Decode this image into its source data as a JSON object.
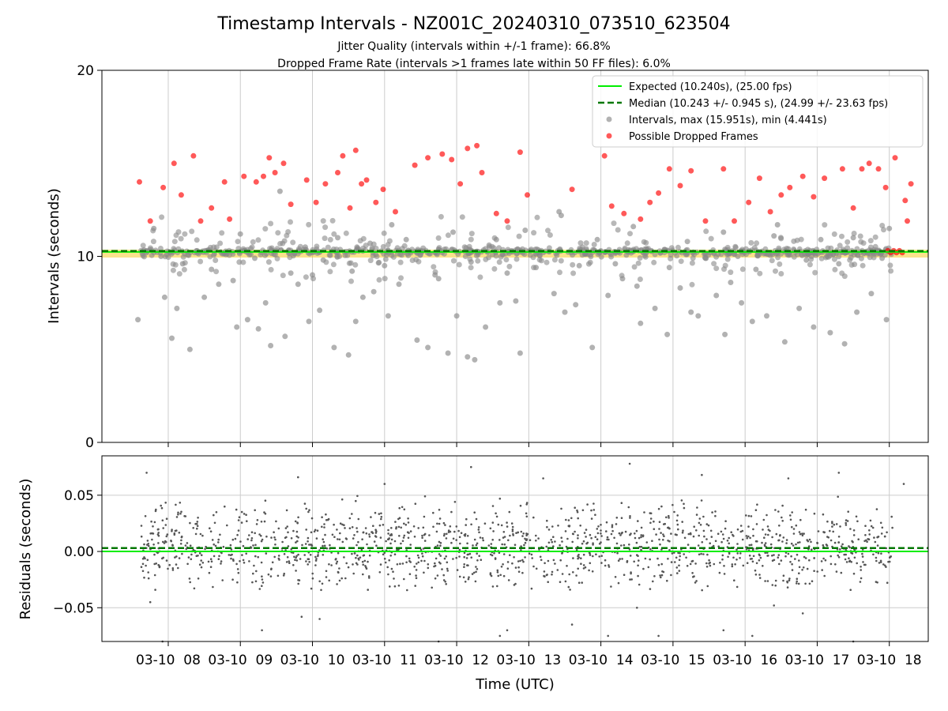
{
  "figure": {
    "title": "Timestamp Intervals - NZ001C_20240310_073510_623504",
    "subtitle_line1": "Jitter Quality (intervals within +/-1 frame): 66.8%",
    "subtitle_line2": "Dropped Frame Rate (intervals >1 frames late within 50 FF files): 6.0%"
  },
  "colors": {
    "expected": "#00ee00",
    "median": "#007700",
    "intervals": "#888888",
    "dropped": "#ff0000",
    "band": "#f5c000",
    "residuals": "#555555",
    "grid": "#cccccc"
  },
  "chart_data": [
    {
      "type": "scatter",
      "ylabel": "Intervals (seconds)",
      "ylim": [
        0,
        20
      ],
      "y_ticks": [
        "0",
        "10",
        "20"
      ],
      "xlim_hours": [
        7.08,
        18.54
      ],
      "x_ticks_hours": [
        8,
        9,
        10,
        11,
        12,
        13,
        14,
        15,
        16,
        17,
        18
      ],
      "grid": "x only",
      "legend_position": "top-right",
      "expected_line": 10.24,
      "median_line": 10.243,
      "legend": [
        "Expected (10.240s), (25.00 fps)",
        "Median (10.243 +/- 0.945 s), (24.99 +/- 23.63 fps)",
        "Intervals, max (15.951s), min (4.441s)",
        "Possible Dropped Frames"
      ],
      "series": [
        {
          "name": "Intervals, max (15.951s), min (4.441s)",
          "points": [
            [
              7.58,
              6.6
            ],
            [
              7.8,
              11.5
            ],
            [
              7.95,
              7.8
            ],
            [
              8.05,
              5.6
            ],
            [
              8.12,
              7.2
            ],
            [
              8.3,
              5.0
            ],
            [
              8.5,
              7.8
            ],
            [
              8.7,
              8.5
            ],
            [
              8.95,
              6.2
            ],
            [
              9.1,
              6.6
            ],
            [
              9.25,
              6.1
            ],
            [
              9.35,
              7.5
            ],
            [
              9.42,
              5.2
            ],
            [
              9.62,
              5.7
            ],
            [
              9.8,
              8.5
            ],
            [
              9.95,
              6.5
            ],
            [
              10.1,
              7.1
            ],
            [
              10.3,
              5.1
            ],
            [
              10.5,
              4.7
            ],
            [
              10.6,
              6.5
            ],
            [
              10.7,
              7.8
            ],
            [
              10.85,
              8.1
            ],
            [
              11.05,
              6.8
            ],
            [
              11.2,
              8.5
            ],
            [
              11.45,
              5.5
            ],
            [
              11.6,
              5.1
            ],
            [
              11.75,
              8.8
            ],
            [
              11.88,
              4.8
            ],
            [
              12.0,
              6.8
            ],
            [
              12.15,
              4.6
            ],
            [
              12.25,
              4.441
            ],
            [
              12.4,
              6.2
            ],
            [
              12.6,
              7.5
            ],
            [
              12.82,
              7.6
            ],
            [
              12.88,
              4.8
            ],
            [
              13.1,
              9.4
            ],
            [
              13.35,
              8.0
            ],
            [
              13.5,
              7.0
            ],
            [
              13.65,
              7.4
            ],
            [
              13.88,
              5.1
            ],
            [
              14.1,
              7.9
            ],
            [
              14.3,
              8.8
            ],
            [
              14.55,
              6.4
            ],
            [
              14.75,
              7.2
            ],
            [
              14.92,
              5.8
            ],
            [
              15.1,
              8.3
            ],
            [
              15.25,
              7.0
            ],
            [
              15.35,
              6.8
            ],
            [
              15.6,
              7.9
            ],
            [
              15.72,
              5.8
            ],
            [
              15.95,
              7.5
            ],
            [
              16.1,
              6.5
            ],
            [
              16.3,
              6.8
            ],
            [
              16.55,
              5.4
            ],
            [
              16.75,
              7.2
            ],
            [
              16.95,
              6.2
            ],
            [
              17.18,
              5.9
            ],
            [
              17.38,
              5.3
            ],
            [
              17.55,
              7.0
            ],
            [
              17.75,
              8.0
            ],
            [
              17.96,
              6.6
            ],
            [
              7.7,
              10.2
            ],
            [
              7.9,
              10.0
            ],
            [
              8.2,
              9.6
            ],
            [
              8.4,
              10.3
            ],
            [
              8.6,
              9.3
            ],
            [
              8.8,
              10.1
            ],
            [
              9.0,
              11.2
            ],
            [
              9.2,
              9.9
            ],
            [
              9.45,
              10.3
            ],
            [
              9.7,
              9.1
            ],
            [
              9.9,
              10.5
            ],
            [
              10.15,
              9.8
            ],
            [
              10.35,
              11.0
            ],
            [
              10.55,
              9.2
            ],
            [
              10.8,
              10.7
            ],
            [
              11.0,
              9.5
            ],
            [
              11.3,
              10.9
            ],
            [
              11.5,
              10.1
            ],
            [
              11.7,
              9.0
            ],
            [
              11.95,
              11.3
            ],
            [
              12.2,
              9.7
            ],
            [
              12.45,
              10.6
            ],
            [
              12.7,
              9.1
            ],
            [
              12.95,
              11.4
            ],
            [
              13.2,
              10.2
            ],
            [
              13.45,
              12.2
            ],
            [
              13.7,
              9.5
            ],
            [
              13.95,
              10.9
            ],
            [
              14.2,
              9.6
            ],
            [
              14.45,
              11.6
            ],
            [
              14.7,
              10.3
            ],
            [
              14.95,
              9.4
            ],
            [
              15.2,
              10.8
            ],
            [
              15.45,
              9.9
            ],
            [
              15.7,
              11.3
            ],
            [
              15.9,
              10.0
            ],
            [
              16.15,
              9.3
            ],
            [
              16.4,
              11.1
            ],
            [
              16.6,
              10.4
            ],
            [
              16.85,
              9.8
            ],
            [
              17.05,
              10.9
            ],
            [
              17.3,
              9.6
            ],
            [
              17.5,
              11.0
            ],
            [
              17.7,
              10.2
            ],
            [
              17.9,
              9.9
            ],
            [
              18.0,
              11.5
            ],
            [
              9.55,
              13.5
            ],
            [
              13.42,
              12.4
            ],
            [
              16.45,
              11.7
            ],
            [
              10.0,
              9.0
            ],
            [
              11.1,
              11.7
            ],
            [
              14.5,
              8.4
            ],
            [
              15.8,
              8.6
            ],
            [
              12.55,
              10.9
            ],
            [
              8.9,
              8.7
            ]
          ]
        },
        {
          "name": "Possible Dropped Frames",
          "points": [
            [
              7.6,
              14.0
            ],
            [
              7.75,
              11.9
            ],
            [
              7.93,
              13.7
            ],
            [
              8.08,
              15.0
            ],
            [
              8.18,
              13.3
            ],
            [
              8.35,
              15.4
            ],
            [
              8.45,
              11.9
            ],
            [
              8.6,
              12.6
            ],
            [
              8.78,
              14.0
            ],
            [
              8.85,
              12.0
            ],
            [
              9.05,
              14.3
            ],
            [
              9.22,
              14.0
            ],
            [
              9.32,
              14.3
            ],
            [
              9.4,
              15.3
            ],
            [
              9.48,
              14.5
            ],
            [
              9.6,
              15.0
            ],
            [
              9.7,
              12.8
            ],
            [
              9.92,
              14.1
            ],
            [
              10.05,
              12.9
            ],
            [
              10.18,
              13.9
            ],
            [
              10.35,
              14.5
            ],
            [
              10.42,
              15.4
            ],
            [
              10.52,
              12.6
            ],
            [
              10.6,
              15.7
            ],
            [
              10.68,
              13.9
            ],
            [
              10.75,
              14.1
            ],
            [
              10.88,
              12.9
            ],
            [
              10.98,
              13.6
            ],
            [
              11.15,
              12.4
            ],
            [
              11.42,
              14.9
            ],
            [
              11.6,
              15.3
            ],
            [
              11.8,
              15.5
            ],
            [
              11.93,
              15.2
            ],
            [
              12.05,
              13.9
            ],
            [
              12.15,
              15.8
            ],
            [
              12.28,
              15.951
            ],
            [
              12.35,
              14.5
            ],
            [
              12.55,
              12.3
            ],
            [
              12.7,
              11.9
            ],
            [
              12.88,
              15.6
            ],
            [
              12.98,
              13.3
            ],
            [
              13.6,
              13.6
            ],
            [
              14.05,
              15.4
            ],
            [
              14.15,
              12.7
            ],
            [
              14.32,
              12.3
            ],
            [
              14.55,
              12.0
            ],
            [
              14.68,
              12.9
            ],
            [
              14.8,
              13.4
            ],
            [
              14.95,
              14.7
            ],
            [
              15.1,
              13.8
            ],
            [
              15.25,
              14.6
            ],
            [
              15.45,
              11.9
            ],
            [
              15.7,
              14.7
            ],
            [
              15.85,
              11.9
            ],
            [
              16.05,
              12.9
            ],
            [
              16.2,
              14.2
            ],
            [
              16.35,
              12.4
            ],
            [
              16.5,
              13.3
            ],
            [
              16.62,
              13.7
            ],
            [
              16.8,
              14.3
            ],
            [
              16.95,
              13.2
            ],
            [
              17.1,
              14.2
            ],
            [
              17.35,
              14.7
            ],
            [
              17.5,
              12.6
            ],
            [
              17.62,
              14.7
            ],
            [
              17.72,
              15.0
            ],
            [
              17.85,
              14.7
            ],
            [
              17.95,
              13.7
            ],
            [
              18.08,
              15.3
            ],
            [
              18.22,
              13.0
            ],
            [
              18.3,
              13.9
            ],
            [
              18.25,
              11.9
            ],
            [
              17.98,
              10.3
            ],
            [
              18.02,
              10.2
            ],
            [
              18.06,
              10.3
            ],
            [
              18.1,
              10.2
            ],
            [
              18.14,
              10.3
            ],
            [
              18.18,
              10.2
            ]
          ]
        }
      ]
    },
    {
      "type": "scatter",
      "xlabel": "Time (UTC)",
      "ylabel": "Residuals (seconds)",
      "ylim": [
        -0.08,
        0.085
      ],
      "y_ticks": [
        "0.05",
        "0.00",
        "−0.05"
      ],
      "x_tick_labels": [
        "03-10  08",
        "03-10  09",
        "03-10  10",
        "03-10  11",
        "03-10  12",
        "03-10  13",
        "03-10  14",
        "03-10  15",
        "03-10  16",
        "03-10  17",
        "03-10  18"
      ],
      "grid": "both",
      "expected_line": 0.0,
      "median_line": 0.003,
      "series": [
        {
          "name": "Residuals",
          "points": [
            [
              7.7,
              0.07
            ],
            [
              7.75,
              -0.045
            ],
            [
              7.92,
              -0.08
            ],
            [
              9.3,
              -0.07
            ],
            [
              9.8,
              0.066
            ],
            [
              9.85,
              -0.058
            ],
            [
              10.1,
              -0.06
            ],
            [
              11.0,
              0.06
            ],
            [
              11.75,
              -0.08
            ],
            [
              12.2,
              0.075
            ],
            [
              12.6,
              -0.075
            ],
            [
              12.7,
              -0.07
            ],
            [
              13.2,
              0.065
            ],
            [
              13.6,
              -0.065
            ],
            [
              14.1,
              -0.075
            ],
            [
              14.4,
              0.078
            ],
            [
              14.5,
              -0.05
            ],
            [
              14.8,
              -0.075
            ],
            [
              15.4,
              0.068
            ],
            [
              15.7,
              -0.07
            ],
            [
              16.1,
              -0.075
            ],
            [
              16.4,
              -0.048
            ],
            [
              16.6,
              0.065
            ],
            [
              16.8,
              -0.055
            ],
            [
              17.3,
              0.07
            ],
            [
              17.5,
              -0.08
            ],
            [
              18.2,
              0.06
            ]
          ]
        }
      ]
    }
  ]
}
